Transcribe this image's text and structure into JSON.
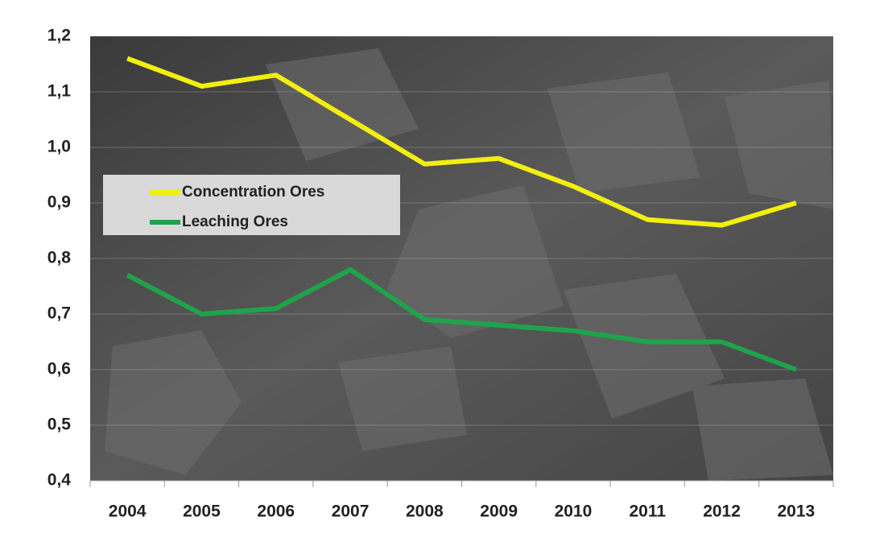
{
  "chart_data": {
    "type": "line",
    "categories": [
      "2004",
      "2005",
      "2006",
      "2007",
      "2008",
      "2009",
      "2010",
      "2011",
      "2012",
      "2013"
    ],
    "series": [
      {
        "name": "Concentration Ores",
        "color": "#f2ee10",
        "values": [
          1.16,
          1.11,
          1.13,
          1.05,
          0.97,
          0.98,
          0.93,
          0.87,
          0.86,
          0.9
        ]
      },
      {
        "name": "Leaching Ores",
        "color": "#1fa34a",
        "values": [
          0.77,
          0.7,
          0.71,
          0.78,
          0.69,
          0.68,
          0.67,
          0.65,
          0.65,
          0.6
        ]
      }
    ],
    "ylim": [
      0.4,
      1.2
    ],
    "yticks": [
      {
        "value": 0.4,
        "label": "0,4"
      },
      {
        "value": 0.5,
        "label": "0,5"
      },
      {
        "value": 0.6,
        "label": "0,6"
      },
      {
        "value": 0.7,
        "label": "0,7"
      },
      {
        "value": 0.8,
        "label": "0,8"
      },
      {
        "value": 0.9,
        "label": "0,9"
      },
      {
        "value": 1.0,
        "label": "1,0"
      },
      {
        "value": 1.1,
        "label": "1,1"
      },
      {
        "value": 1.2,
        "label": "1,2"
      }
    ],
    "grid": true
  }
}
